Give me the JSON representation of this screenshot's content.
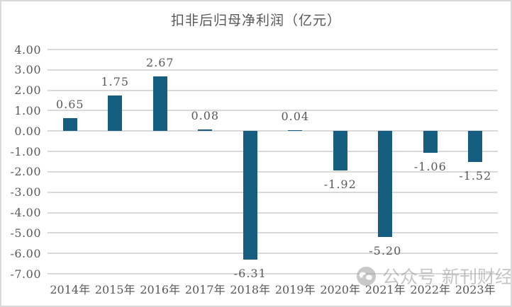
{
  "title": "扣非后归母净利润（亿元）",
  "chart_data": {
    "type": "bar",
    "title": "扣非后归母净利润（亿元）",
    "categories": [
      "2014年",
      "2015年",
      "2016年",
      "2017年",
      "2018年",
      "2019年",
      "2020年",
      "2021年",
      "2022年",
      "2023年"
    ],
    "values": [
      0.65,
      1.75,
      2.67,
      0.08,
      -6.31,
      0.04,
      -1.92,
      -5.2,
      -1.06,
      -1.52
    ],
    "value_labels": [
      "0.65",
      "1.75",
      "2.67",
      "0.08",
      "-6.31",
      "0.04",
      "-1.92",
      "-5.20",
      "-1.06",
      "-1.52"
    ],
    "xlabel": "",
    "ylabel": "",
    "ylim": [
      -7,
      4
    ],
    "ytick_step": 1,
    "ytick_decimals": 2,
    "grid": true,
    "legend": false,
    "bar_color": "#175d80",
    "gridline_color": "#d9d9d9",
    "axis_text_color": "#595959"
  },
  "watermark": {
    "icon": "wechat-icon",
    "prefix": "公众号",
    "name": "新刊财经",
    "color": "#bdbdbd"
  }
}
